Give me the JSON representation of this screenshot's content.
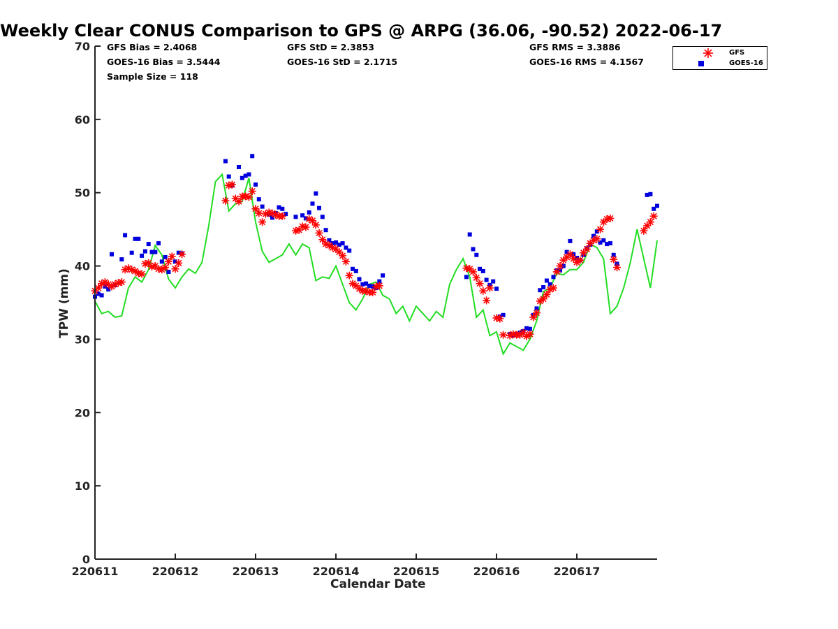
{
  "chart_data": {
    "type": "scatter",
    "title": "Weekly Clear CONUS Comparison to GPS @ ARPG (36.06, -90.52) 2022-06-17",
    "xlabel": "Calendar Date",
    "ylabel": "TPW (mm)",
    "xlim": [
      "2022-06-11",
      "2022-06-18"
    ],
    "ylim": [
      0,
      70
    ],
    "xticks": [
      "220611",
      "220612",
      "220613",
      "220614",
      "220615",
      "220616",
      "220617"
    ],
    "yticks": [
      0,
      10,
      20,
      30,
      40,
      50,
      60,
      70
    ],
    "grid": false,
    "legend_position": "top-right outside",
    "stats": {
      "gfs_bias": "GFS Bias = 2.4068",
      "goes_bias": "GOES-16 Bias = 3.5444",
      "sample_size": "Sample Size = 118",
      "gfs_std": "GFS StD = 2.3853",
      "goes_std": "GOES-16 StD = 2.1715",
      "gfs_rms": "GFS RMS = 3.3886",
      "goes_rms": "GOES-16 RMS = 4.1567"
    },
    "series": [
      {
        "name": "GFS",
        "marker": "asterisk",
        "color": "#ff0000",
        "x": [
          "2022-06-11 00:00",
          "2022-06-11 01:00",
          "2022-06-11 02:00",
          "2022-06-11 03:00",
          "2022-06-11 04:00",
          "2022-06-11 05:00",
          "2022-06-11 06:00",
          "2022-06-11 07:00",
          "2022-06-11 08:00",
          "2022-06-11 09:00",
          "2022-06-11 10:00",
          "2022-06-11 11:00",
          "2022-06-11 12:00",
          "2022-06-11 13:00",
          "2022-06-11 14:00",
          "2022-06-11 15:00",
          "2022-06-11 16:00",
          "2022-06-11 17:00",
          "2022-06-11 18:00",
          "2022-06-11 19:00",
          "2022-06-11 20:00",
          "2022-06-11 21:00",
          "2022-06-11 22:00",
          "2022-06-11 23:00",
          "2022-06-12 00:00",
          "2022-06-12 01:00",
          "2022-06-12 02:00",
          "2022-06-12 15:00",
          "2022-06-12 16:00",
          "2022-06-12 17:00",
          "2022-06-12 18:00",
          "2022-06-12 19:00",
          "2022-06-12 20:00",
          "2022-06-12 21:00",
          "2022-06-12 22:00",
          "2022-06-12 23:00",
          "2022-06-13 00:00",
          "2022-06-13 01:00",
          "2022-06-13 02:00",
          "2022-06-13 03:00",
          "2022-06-13 04:00",
          "2022-06-13 05:00",
          "2022-06-13 06:00",
          "2022-06-13 07:00",
          "2022-06-13 08:00",
          "2022-06-13 12:00",
          "2022-06-13 13:00",
          "2022-06-13 14:00",
          "2022-06-13 15:00",
          "2022-06-13 16:00",
          "2022-06-13 17:00",
          "2022-06-13 18:00",
          "2022-06-13 19:00",
          "2022-06-13 20:00",
          "2022-06-13 21:00",
          "2022-06-13 22:00",
          "2022-06-13 23:00",
          "2022-06-14 00:00",
          "2022-06-14 01:00",
          "2022-06-14 02:00",
          "2022-06-14 03:00",
          "2022-06-14 04:00",
          "2022-06-14 05:00",
          "2022-06-14 06:00",
          "2022-06-14 07:00",
          "2022-06-14 08:00",
          "2022-06-14 09:00",
          "2022-06-14 10:00",
          "2022-06-14 11:00",
          "2022-06-14 12:00",
          "2022-06-14 13:00",
          "2022-06-15 15:00",
          "2022-06-15 16:00",
          "2022-06-15 17:00",
          "2022-06-15 18:00",
          "2022-06-15 19:00",
          "2022-06-15 20:00",
          "2022-06-15 21:00",
          "2022-06-15 22:00",
          "2022-06-16 00:00",
          "2022-06-16 01:00",
          "2022-06-16 02:00",
          "2022-06-16 04:00",
          "2022-06-16 05:00",
          "2022-06-16 06:00",
          "2022-06-16 07:00",
          "2022-06-16 08:00",
          "2022-06-16 09:00",
          "2022-06-16 10:00",
          "2022-06-16 11:00",
          "2022-06-16 12:00",
          "2022-06-16 13:00",
          "2022-06-16 14:00",
          "2022-06-16 15:00",
          "2022-06-16 16:00",
          "2022-06-16 17:00",
          "2022-06-16 18:00",
          "2022-06-16 19:00",
          "2022-06-16 20:00",
          "2022-06-16 21:00",
          "2022-06-16 22:00",
          "2022-06-16 23:00",
          "2022-06-17 00:00",
          "2022-06-17 01:00",
          "2022-06-17 02:00",
          "2022-06-17 03:00",
          "2022-06-17 04:00",
          "2022-06-17 05:00",
          "2022-06-17 06:00",
          "2022-06-17 07:00",
          "2022-06-17 08:00",
          "2022-06-17 09:00",
          "2022-06-17 10:00",
          "2022-06-17 11:00",
          "2022-06-17 12:00",
          "2022-06-17 20:00",
          "2022-06-17 21:00",
          "2022-06-17 22:00",
          "2022-06-17 23:00"
        ],
        "y": [
          36.6,
          37.0,
          37.6,
          37.8,
          37.5,
          37.2,
          37.5,
          37.7,
          37.8,
          39.5,
          39.7,
          39.5,
          39.3,
          39.0,
          38.9,
          40.3,
          40.4,
          39.9,
          40.0,
          39.6,
          39.5,
          39.8,
          40.6,
          41.3,
          39.6,
          40.4,
          41.6,
          48.9,
          51.0,
          51.1,
          49.2,
          48.8,
          49.5,
          49.5,
          49.4,
          50.2,
          47.8,
          47.2,
          46.0,
          47.1,
          47.3,
          47.2,
          47.0,
          46.8,
          46.8,
          44.8,
          44.9,
          45.4,
          45.3,
          46.4,
          46.2,
          45.6,
          44.5,
          43.6,
          43.0,
          42.8,
          42.5,
          42.3,
          41.9,
          41.4,
          40.6,
          38.7,
          37.6,
          37.3,
          36.9,
          36.6,
          36.6,
          36.4,
          36.4,
          37.2,
          37.3,
          39.7,
          39.6,
          39.2,
          38.4,
          37.6,
          36.6,
          35.3,
          37.0,
          32.9,
          32.8,
          30.6,
          30.5,
          30.7,
          30.6,
          30.6,
          30.9,
          30.4,
          30.7,
          33.0,
          33.6,
          35.2,
          35.5,
          36.1,
          36.8,
          37.0,
          39.2,
          40.0,
          40.8,
          41.2,
          41.6,
          41.0,
          40.5,
          40.8,
          41.8,
          42.3,
          43.1,
          43.5,
          43.7,
          45.0,
          46.0,
          46.4,
          46.5,
          40.9,
          39.8,
          44.8,
          45.5,
          46.0,
          46.8
        ]
      },
      {
        "name": "GOES-16",
        "marker": "square",
        "color": "#0000dd",
        "x": [
          "2022-06-11 00:00",
          "2022-06-11 01:00",
          "2022-06-11 02:00",
          "2022-06-11 03:00",
          "2022-06-11 04:00",
          "2022-06-11 05:00",
          "2022-06-11 06:00",
          "2022-06-11 08:00",
          "2022-06-11 09:00",
          "2022-06-11 11:00",
          "2022-06-11 12:00",
          "2022-06-11 13:00",
          "2022-06-11 14:00",
          "2022-06-11 15:00",
          "2022-06-11 16:00",
          "2022-06-11 17:00",
          "2022-06-11 18:00",
          "2022-06-11 19:00",
          "2022-06-11 20:00",
          "2022-06-11 21:00",
          "2022-06-11 22:00",
          "2022-06-12 00:00",
          "2022-06-12 01:00",
          "2022-06-12 02:00",
          "2022-06-12 15:00",
          "2022-06-12 16:00",
          "2022-06-12 17:00",
          "2022-06-12 19:00",
          "2022-06-12 20:00",
          "2022-06-12 21:00",
          "2022-06-12 22:00",
          "2022-06-12 23:00",
          "2022-06-13 00:00",
          "2022-06-13 01:00",
          "2022-06-13 02:00",
          "2022-06-13 04:00",
          "2022-06-13 05:00",
          "2022-06-13 06:00",
          "2022-06-13 07:00",
          "2022-06-13 08:00",
          "2022-06-13 09:00",
          "2022-06-13 12:00",
          "2022-06-13 14:00",
          "2022-06-13 15:00",
          "2022-06-13 16:00",
          "2022-06-13 17:00",
          "2022-06-13 18:00",
          "2022-06-13 19:00",
          "2022-06-13 20:00",
          "2022-06-13 21:00",
          "2022-06-13 22:00",
          "2022-06-13 23:00",
          "2022-06-14 00:00",
          "2022-06-14 01:00",
          "2022-06-14 02:00",
          "2022-06-14 03:00",
          "2022-06-14 04:00",
          "2022-06-14 05:00",
          "2022-06-14 06:00",
          "2022-06-14 07:00",
          "2022-06-14 08:00",
          "2022-06-14 09:00",
          "2022-06-14 10:00",
          "2022-06-14 11:00",
          "2022-06-14 12:00",
          "2022-06-14 13:00",
          "2022-06-14 14:00",
          "2022-06-15 15:00",
          "2022-06-15 16:00",
          "2022-06-15 17:00",
          "2022-06-15 18:00",
          "2022-06-15 19:00",
          "2022-06-15 20:00",
          "2022-06-15 21:00",
          "2022-06-15 22:00",
          "2022-06-15 23:00",
          "2022-06-16 00:00",
          "2022-06-16 01:00",
          "2022-06-16 02:00",
          "2022-06-16 04:00",
          "2022-06-16 05:00",
          "2022-06-16 06:00",
          "2022-06-16 07:00",
          "2022-06-16 08:00",
          "2022-06-16 09:00",
          "2022-06-16 10:00",
          "2022-06-16 11:00",
          "2022-06-16 12:00",
          "2022-06-16 13:00",
          "2022-06-16 14:00",
          "2022-06-16 15:00",
          "2022-06-16 16:00",
          "2022-06-16 17:00",
          "2022-06-16 18:00",
          "2022-06-16 19:00",
          "2022-06-16 20:00",
          "2022-06-16 21:00",
          "2022-06-16 22:00",
          "2022-06-16 23:00",
          "2022-06-17 00:00",
          "2022-06-17 01:00",
          "2022-06-17 02:00",
          "2022-06-17 03:00",
          "2022-06-17 04:00",
          "2022-06-17 05:00",
          "2022-06-17 06:00",
          "2022-06-17 07:00",
          "2022-06-17 08:00",
          "2022-06-17 09:00",
          "2022-06-17 10:00",
          "2022-06-17 11:00",
          "2022-06-17 12:00",
          "2022-06-17 21:00",
          "2022-06-17 22:00",
          "2022-06-17 23:00",
          "2022-06-18 00:00"
        ],
        "y": [
          35.8,
          36.2,
          36.0,
          37.2,
          36.8,
          41.6,
          37.4,
          40.9,
          44.2,
          41.8,
          43.7,
          43.7,
          41.4,
          42.0,
          43.0,
          41.9,
          41.9,
          43.1,
          40.6,
          41.2,
          39.2,
          40.6,
          41.8,
          41.7,
          54.3,
          52.2,
          51.0,
          53.5,
          52.0,
          52.3,
          52.5,
          55.0,
          51.1,
          49.1,
          48.1,
          47.0,
          46.6,
          47.2,
          48.0,
          47.8,
          47.1,
          46.7,
          46.9,
          46.5,
          47.3,
          48.5,
          49.9,
          47.9,
          46.7,
          44.9,
          43.5,
          43.1,
          43.2,
          42.9,
          43.1,
          42.5,
          42.1,
          39.6,
          39.3,
          38.2,
          37.5,
          37.6,
          37.3,
          37.2,
          37.0,
          37.9,
          38.7,
          38.5,
          44.3,
          42.3,
          41.5,
          39.6,
          39.3,
          38.1,
          37.4,
          37.9,
          36.9,
          33.1,
          33.3,
          30.7,
          30.5,
          30.7,
          30.9,
          31.1,
          31.5,
          31.4,
          33.3,
          34.2,
          36.7,
          37.1,
          38.0,
          37.5,
          38.5,
          39.4,
          39.4,
          40.0,
          41.9,
          43.4,
          41.6,
          41.1,
          40.8,
          41.5,
          42.4,
          42.9,
          44.1,
          44.7,
          43.2,
          43.5,
          43.0,
          43.1,
          41.5,
          40.3,
          49.7,
          49.8,
          47.8,
          48.2
        ]
      },
      {
        "name": "GPS",
        "marker": "line",
        "color": "#22dd22",
        "x": [
          "2022-06-11 00:00",
          "2022-06-11 02:00",
          "2022-06-11 04:00",
          "2022-06-11 06:00",
          "2022-06-11 08:00",
          "2022-06-11 10:00",
          "2022-06-11 12:00",
          "2022-06-11 14:00",
          "2022-06-11 16:00",
          "2022-06-11 18:00",
          "2022-06-11 20:00",
          "2022-06-11 22:00",
          "2022-06-12 00:00",
          "2022-06-12 02:00",
          "2022-06-12 04:00",
          "2022-06-12 06:00",
          "2022-06-12 08:00",
          "2022-06-12 10:00",
          "2022-06-12 12:00",
          "2022-06-12 14:00",
          "2022-06-12 16:00",
          "2022-06-12 18:00",
          "2022-06-12 20:00",
          "2022-06-12 22:00",
          "2022-06-13 00:00",
          "2022-06-13 02:00",
          "2022-06-13 04:00",
          "2022-06-13 06:00",
          "2022-06-13 08:00",
          "2022-06-13 10:00",
          "2022-06-13 12:00",
          "2022-06-13 14:00",
          "2022-06-13 16:00",
          "2022-06-13 18:00",
          "2022-06-13 20:00",
          "2022-06-13 22:00",
          "2022-06-14 00:00",
          "2022-06-14 02:00",
          "2022-06-14 04:00",
          "2022-06-14 06:00",
          "2022-06-14 08:00",
          "2022-06-14 10:00",
          "2022-06-14 12:00",
          "2022-06-14 14:00",
          "2022-06-14 16:00",
          "2022-06-14 18:00",
          "2022-06-14 20:00",
          "2022-06-14 22:00",
          "2022-06-15 00:00",
          "2022-06-15 02:00",
          "2022-06-15 04:00",
          "2022-06-15 06:00",
          "2022-06-15 08:00",
          "2022-06-15 10:00",
          "2022-06-15 12:00",
          "2022-06-15 14:00",
          "2022-06-15 16:00",
          "2022-06-15 18:00",
          "2022-06-15 20:00",
          "2022-06-15 22:00",
          "2022-06-16 00:00",
          "2022-06-16 02:00",
          "2022-06-16 04:00",
          "2022-06-16 06:00",
          "2022-06-16 08:00",
          "2022-06-16 10:00",
          "2022-06-16 12:00",
          "2022-06-16 14:00",
          "2022-06-16 16:00",
          "2022-06-16 18:00",
          "2022-06-16 20:00",
          "2022-06-16 22:00",
          "2022-06-17 00:00",
          "2022-06-17 02:00",
          "2022-06-17 04:00",
          "2022-06-17 06:00",
          "2022-06-17 08:00",
          "2022-06-17 10:00",
          "2022-06-17 12:00",
          "2022-06-17 14:00",
          "2022-06-17 16:00",
          "2022-06-17 18:00",
          "2022-06-17 20:00",
          "2022-06-17 22:00",
          "2022-06-18 00:00"
        ],
        "y": [
          35.2,
          33.5,
          33.8,
          33.0,
          33.2,
          37.0,
          38.5,
          37.8,
          39.5,
          42.8,
          41.5,
          38.2,
          37.0,
          38.5,
          39.6,
          39.0,
          40.5,
          45.5,
          51.5,
          52.5,
          47.5,
          48.5,
          48.8,
          52.0,
          46.0,
          42.0,
          40.5,
          41.0,
          41.5,
          43.0,
          41.5,
          43.0,
          42.5,
          38.0,
          38.5,
          38.3,
          40.0,
          37.5,
          35.0,
          34.0,
          35.5,
          37.5,
          37.8,
          36.0,
          35.5,
          33.5,
          34.5,
          32.5,
          34.5,
          33.5,
          32.5,
          33.8,
          33.0,
          37.5,
          39.5,
          41.0,
          38.5,
          33.0,
          34.0,
          30.5,
          31.0,
          28.0,
          29.5,
          29.0,
          28.5,
          30.0,
          32.5,
          36.5,
          37.0,
          39.0,
          38.8,
          39.5,
          39.5,
          40.5,
          43.0,
          42.5,
          41.0,
          33.5,
          34.5,
          37.0,
          40.5,
          45.0,
          41.0,
          37.0,
          43.5
        ]
      }
    ]
  }
}
